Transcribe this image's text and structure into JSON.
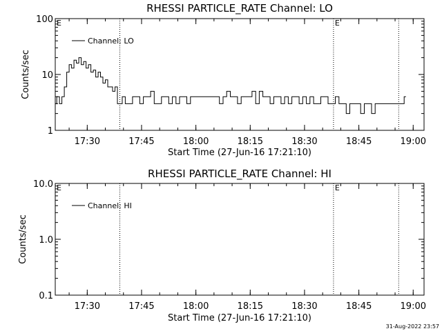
{
  "footer_timestamp": "31-Aug-2022 23:57",
  "chart_data": [
    {
      "type": "line",
      "title": "RHESSI PARTICLE_RATE Channel: LO",
      "xlabel": "Start Time (27-Jun-16 17:21:10)",
      "ylabel": "Counts/sec",
      "y_scale": "log",
      "ylim": [
        1,
        100
      ],
      "y_ticks": [
        1,
        10,
        100
      ],
      "y_tick_labels": [
        "1",
        "10",
        "100"
      ],
      "xlim": [
        "17:21:10",
        "19:03:00"
      ],
      "x_ticks": [
        "17:30",
        "17:45",
        "18:00",
        "18:15",
        "18:30",
        "18:45",
        "19:00"
      ],
      "legend": "top-left",
      "grid": false,
      "event_lines": [
        {
          "time": "17:39:00",
          "label": ""
        },
        {
          "time": "18:38:00",
          "label": "E"
        },
        {
          "time": "18:56:00",
          "label": ""
        }
      ],
      "edge_labels": [
        {
          "position": "left",
          "text": "E"
        }
      ],
      "series": [
        {
          "name": "Channel: LO",
          "x": [
            "17:21:10",
            "17:22:00",
            "17:22:40",
            "17:23:20",
            "17:24:00",
            "17:24:40",
            "17:25:20",
            "17:26:00",
            "17:26:40",
            "17:27:20",
            "17:28:00",
            "17:28:40",
            "17:29:20",
            "17:30:00",
            "17:30:40",
            "17:31:20",
            "17:32:00",
            "17:32:40",
            "17:33:20",
            "17:34:00",
            "17:34:40",
            "17:35:20",
            "17:36:00",
            "17:36:40",
            "17:37:20",
            "17:38:00",
            "17:38:40",
            "17:39:20",
            "17:40:00",
            "17:41:00",
            "17:42:00",
            "17:43:00",
            "17:44:00",
            "17:45:00",
            "17:46:00",
            "17:47:00",
            "17:48:00",
            "17:49:00",
            "17:50:00",
            "17:51:00",
            "17:52:00",
            "17:53:00",
            "17:54:00",
            "17:55:00",
            "17:56:00",
            "17:57:00",
            "17:58:00",
            "17:59:00",
            "18:00:00",
            "18:01:00",
            "18:02:00",
            "18:03:00",
            "18:04:00",
            "18:05:00",
            "18:06:00",
            "18:07:00",
            "18:08:00",
            "18:09:00",
            "18:10:00",
            "18:11:00",
            "18:12:00",
            "18:13:00",
            "18:14:00",
            "18:15:00",
            "18:16:00",
            "18:17:00",
            "18:18:00",
            "18:19:00",
            "18:20:00",
            "18:21:00",
            "18:22:00",
            "18:23:00",
            "18:24:00",
            "18:25:00",
            "18:26:00",
            "18:27:00",
            "18:28:00",
            "18:29:00",
            "18:30:00",
            "18:31:00",
            "18:32:00",
            "18:33:00",
            "18:34:00",
            "18:35:00",
            "18:36:00",
            "18:37:00",
            "18:38:00",
            "18:39:00",
            "18:40:00",
            "18:41:00",
            "18:42:00",
            "18:43:00",
            "18:44:00",
            "18:45:00",
            "18:46:00",
            "18:47:00",
            "18:48:00",
            "18:49:00",
            "18:50:00",
            "18:51:00",
            "18:52:00",
            "18:53:00",
            "18:54:00",
            "18:55:00",
            "18:56:00",
            "18:57:00",
            "18:58:00"
          ],
          "values": [
            3,
            4,
            3,
            4,
            6,
            11,
            15,
            13,
            18,
            16,
            20,
            15,
            17,
            13,
            15,
            11,
            12,
            9,
            11,
            9,
            7,
            8,
            6,
            6,
            5,
            6,
            3,
            3,
            4,
            3,
            3,
            4,
            4,
            3,
            4,
            4,
            5,
            3,
            3,
            4,
            4,
            3,
            4,
            3,
            4,
            4,
            3,
            4,
            4,
            4,
            4,
            4,
            4,
            4,
            4,
            3,
            4,
            5,
            4,
            4,
            3,
            4,
            4,
            4,
            5,
            3,
            5,
            4,
            4,
            3,
            4,
            4,
            3,
            4,
            3,
            4,
            4,
            3,
            4,
            3,
            4,
            3,
            3,
            4,
            4,
            3,
            3,
            4,
            3,
            3,
            2,
            3,
            3,
            3,
            2,
            3,
            3,
            2,
            3,
            3,
            3,
            3,
            3,
            3,
            3,
            3,
            4
          ]
        }
      ]
    },
    {
      "type": "line",
      "title": "RHESSI PARTICLE_RATE Channel: HI",
      "xlabel": "Start Time (27-Jun-16 17:21:10)",
      "ylabel": "Counts/sec",
      "y_scale": "log",
      "ylim": [
        0.1,
        10
      ],
      "y_ticks": [
        0.1,
        1,
        10
      ],
      "y_tick_labels": [
        "0.1",
        "1.0",
        "10.0"
      ],
      "xlim": [
        "17:21:10",
        "19:03:00"
      ],
      "x_ticks": [
        "17:30",
        "17:45",
        "18:00",
        "18:15",
        "18:30",
        "18:45",
        "19:00"
      ],
      "legend": "top-left",
      "grid": false,
      "event_lines": [
        {
          "time": "17:39:00",
          "label": ""
        },
        {
          "time": "18:38:00",
          "label": "E"
        },
        {
          "time": "18:56:00",
          "label": ""
        }
      ],
      "edge_labels": [
        {
          "position": "left",
          "text": "E"
        }
      ],
      "series": [
        {
          "name": "Channel: HI",
          "x": [],
          "values": []
        }
      ]
    }
  ]
}
